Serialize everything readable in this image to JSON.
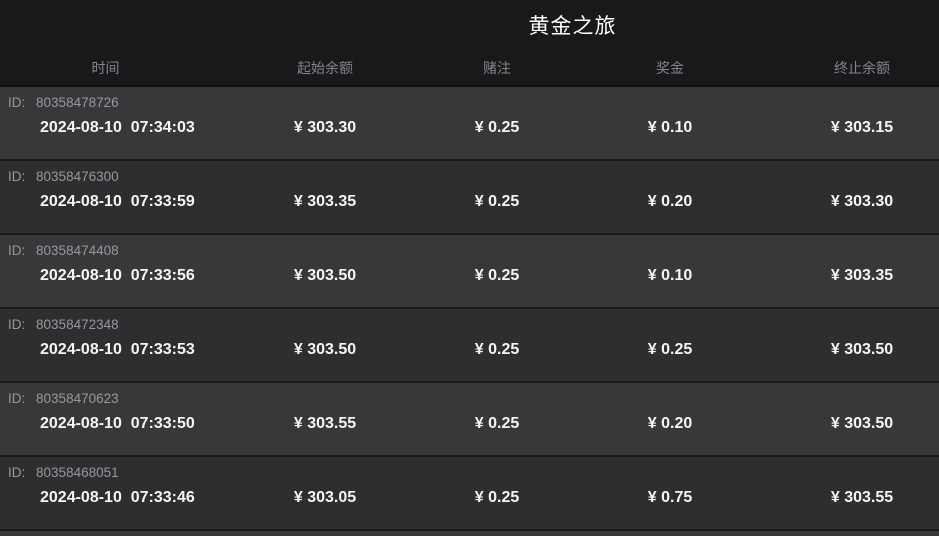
{
  "header": {
    "title": "黄金之旅",
    "columns": [
      "时间",
      "起始余额",
      "赌注",
      "奖金",
      "终止余额"
    ]
  },
  "rows": [
    {
      "id_label": "ID:",
      "id": "80358478726",
      "time": "2024-08-10  07:34:03",
      "start_balance": "¥ 303.30",
      "bet": "¥ 0.25",
      "win": "¥ 0.10",
      "end_balance": "¥ 303.15"
    },
    {
      "id_label": "ID:",
      "id": "80358476300",
      "time": "2024-08-10  07:33:59",
      "start_balance": "¥ 303.35",
      "bet": "¥ 0.25",
      "win": "¥ 0.20",
      "end_balance": "¥ 303.30"
    },
    {
      "id_label": "ID:",
      "id": "80358474408",
      "time": "2024-08-10  07:33:56",
      "start_balance": "¥ 303.50",
      "bet": "¥ 0.25",
      "win": "¥ 0.10",
      "end_balance": "¥ 303.35"
    },
    {
      "id_label": "ID:",
      "id": "80358472348",
      "time": "2024-08-10  07:33:53",
      "start_balance": "¥ 303.50",
      "bet": "¥ 0.25",
      "win": "¥ 0.25",
      "end_balance": "¥ 303.50"
    },
    {
      "id_label": "ID:",
      "id": "80358470623",
      "time": "2024-08-10  07:33:50",
      "start_balance": "¥ 303.55",
      "bet": "¥ 0.25",
      "win": "¥ 0.20",
      "end_balance": "¥ 303.50"
    },
    {
      "id_label": "ID:",
      "id": "80358468051",
      "time": "2024-08-10  07:33:46",
      "start_balance": "¥ 303.05",
      "bet": "¥ 0.25",
      "win": "¥ 0.75",
      "end_balance": "¥ 303.55"
    }
  ],
  "colors": {
    "background": "#19191b",
    "row_light": "#37383a",
    "row_dark": "#2d2e30",
    "separator": "#1a1a1c",
    "title_text": "#ffffff",
    "column_header_text": "#85858a",
    "id_text": "#98989c",
    "value_text": "#f5f5f5"
  }
}
